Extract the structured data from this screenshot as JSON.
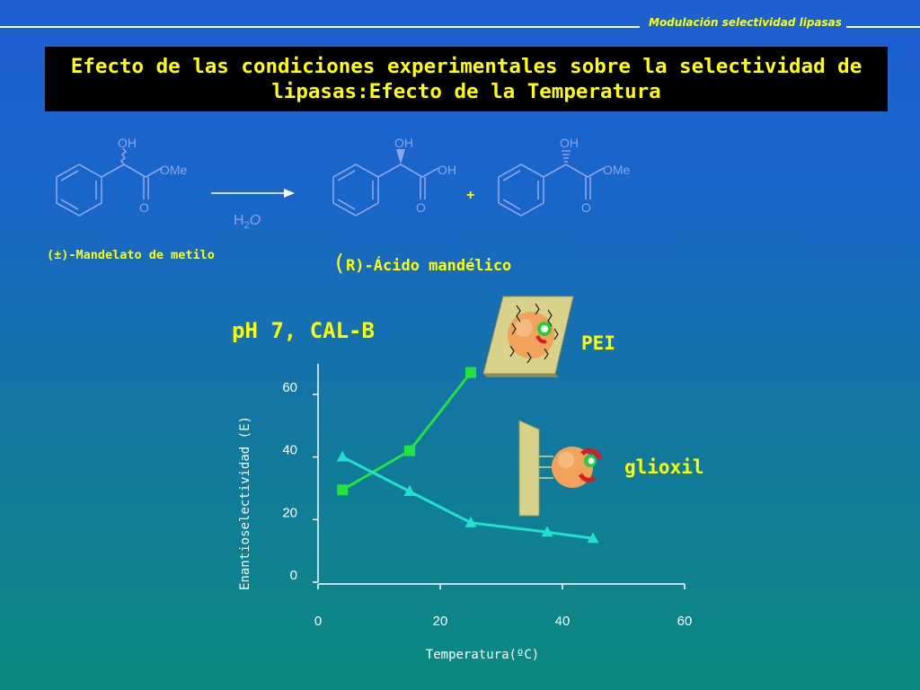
{
  "header": {
    "section": "Modulación selectividad lipasas"
  },
  "title": "Efecto de las condiciones experimentales sobre la selectividad de lipasas:Efecto de la Temperatura",
  "reaction": {
    "substrate_label": "(±)-Mandelato de metilo",
    "reagent_main": "H",
    "reagent_sub": "2",
    "reagent_tail": "O",
    "product_prefix": "(",
    "product_label": "R)-Ácido mandélico",
    "plus": "+",
    "atoms": {
      "oh": "OH",
      "ome": "OMe",
      "o": "O"
    }
  },
  "conditions": "pH 7, CAL-B",
  "legend": {
    "pei": "PEI",
    "glioxil": "glioxil"
  },
  "colors": {
    "pei_series": "#22e43c",
    "glioxil_series": "#22e0cc",
    "text_yellow": "#ffff00"
  },
  "chart_data": {
    "type": "line",
    "title": "",
    "xlabel": "Temperatura(ºC)",
    "ylabel": "Enantioselectividad (E)",
    "xlim": [
      0,
      60
    ],
    "ylim": [
      0,
      60
    ],
    "xticks": [
      0,
      20,
      40,
      60
    ],
    "yticks": [
      0,
      20,
      40,
      60
    ],
    "series": [
      {
        "name": "PEI",
        "marker": "square",
        "x": [
          4,
          15,
          25
        ],
        "y": [
          29.5,
          42,
          67
        ]
      },
      {
        "name": "glioxil",
        "marker": "triangle",
        "x": [
          4,
          15,
          25,
          37.5,
          45
        ],
        "y": [
          40,
          29,
          19,
          16,
          14
        ]
      }
    ]
  }
}
